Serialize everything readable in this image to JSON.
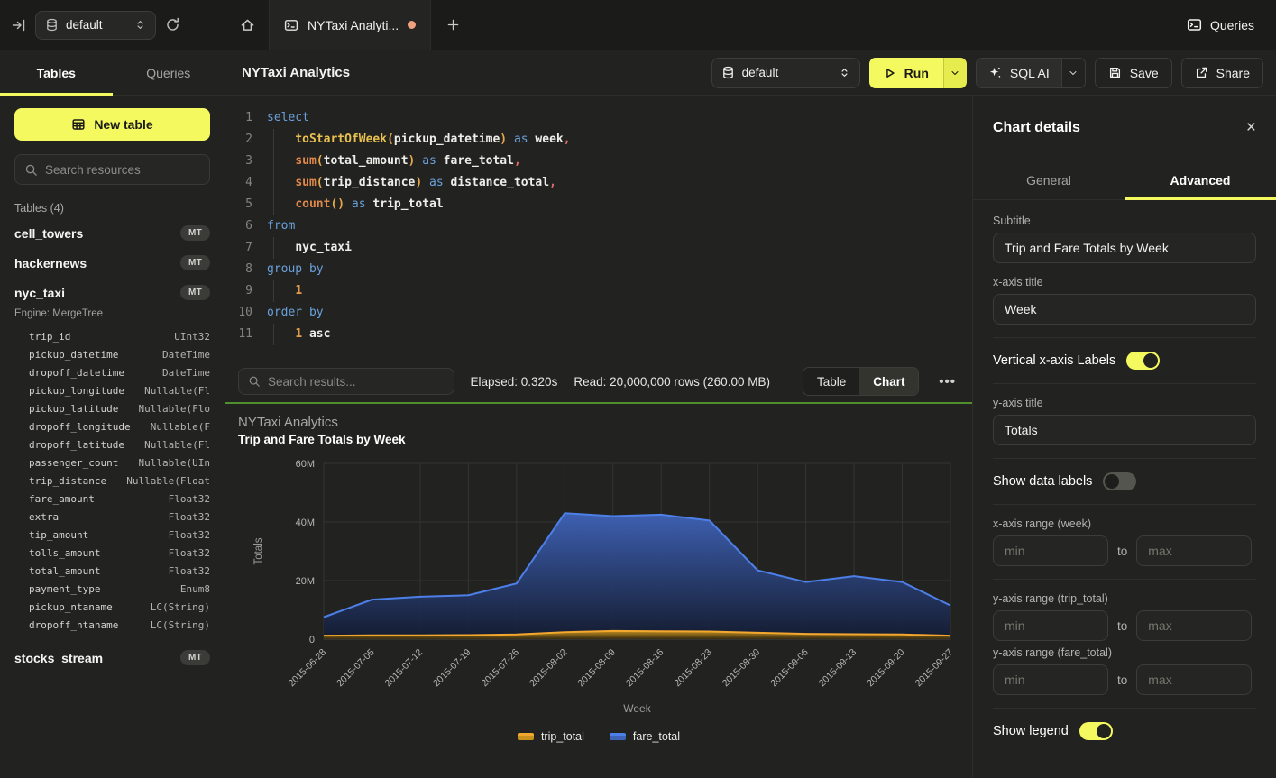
{
  "sidebar": {
    "database": "default",
    "tabs": [
      {
        "label": "Tables",
        "active": true
      },
      {
        "label": "Queries",
        "active": false
      }
    ],
    "new_table": "New table",
    "search_placeholder": "Search resources",
    "tables_header": "Tables (4)",
    "tables": [
      {
        "name": "cell_towers",
        "badge": "MT"
      },
      {
        "name": "hackernews",
        "badge": "MT"
      },
      {
        "name": "nyc_taxi",
        "badge": "MT",
        "engine": "Engine: MergeTree",
        "columns": [
          {
            "name": "trip_id",
            "type": "UInt32"
          },
          {
            "name": "pickup_datetime",
            "type": "DateTime"
          },
          {
            "name": "dropoff_datetime",
            "type": "DateTime"
          },
          {
            "name": "pickup_longitude",
            "type": "Nullable(Fl"
          },
          {
            "name": "pickup_latitude",
            "type": "Nullable(Flo"
          },
          {
            "name": "dropoff_longitude",
            "type": "Nullable(F"
          },
          {
            "name": "dropoff_latitude",
            "type": "Nullable(Fl"
          },
          {
            "name": "passenger_count",
            "type": "Nullable(UIn"
          },
          {
            "name": "trip_distance",
            "type": "Nullable(Float"
          },
          {
            "name": "fare_amount",
            "type": "Float32"
          },
          {
            "name": "extra",
            "type": "Float32"
          },
          {
            "name": "tip_amount",
            "type": "Float32"
          },
          {
            "name": "tolls_amount",
            "type": "Float32"
          },
          {
            "name": "total_amount",
            "type": "Float32"
          },
          {
            "name": "payment_type",
            "type": "Enum8"
          },
          {
            "name": "pickup_ntaname",
            "type": "LC(String)"
          },
          {
            "name": "dropoff_ntaname",
            "type": "LC(String)"
          }
        ]
      },
      {
        "name": "stocks_stream",
        "badge": "MT"
      }
    ]
  },
  "tabstrip": {
    "tab_title": "NYTaxi Analyti...",
    "queries": "Queries"
  },
  "toolbar": {
    "title": "NYTaxi Analytics",
    "database": "default",
    "run": "Run",
    "sql_ai": "SQL AI",
    "save": "Save",
    "share": "Share"
  },
  "editor": {
    "lines": [
      {
        "n": "1",
        "ind": false,
        "toks": [
          {
            "c": "kw",
            "t": "select"
          }
        ]
      },
      {
        "n": "2",
        "ind": true,
        "toks": [
          {
            "c": "fn",
            "t": "toStartOfWeek"
          },
          {
            "c": "pr",
            "t": "("
          },
          {
            "c": "id",
            "t": "pickup_datetime"
          },
          {
            "c": "pr",
            "t": ")"
          },
          {
            "c": "kw",
            "t": " as"
          },
          {
            "c": "id",
            "t": " week"
          },
          {
            "c": "cm",
            "t": ","
          }
        ]
      },
      {
        "n": "3",
        "ind": true,
        "toks": [
          {
            "c": "agg",
            "t": "sum"
          },
          {
            "c": "pr",
            "t": "("
          },
          {
            "c": "id",
            "t": "total_amount"
          },
          {
            "c": "pr",
            "t": ")"
          },
          {
            "c": "kw",
            "t": " as"
          },
          {
            "c": "id",
            "t": " fare_total"
          },
          {
            "c": "cm",
            "t": ","
          }
        ]
      },
      {
        "n": "4",
        "ind": true,
        "toks": [
          {
            "c": "agg",
            "t": "sum"
          },
          {
            "c": "pr",
            "t": "("
          },
          {
            "c": "id",
            "t": "trip_distance"
          },
          {
            "c": "pr",
            "t": ")"
          },
          {
            "c": "kw",
            "t": " as"
          },
          {
            "c": "id",
            "t": " distance_total"
          },
          {
            "c": "cm",
            "t": ","
          }
        ]
      },
      {
        "n": "5",
        "ind": true,
        "toks": [
          {
            "c": "agg",
            "t": "count"
          },
          {
            "c": "pr",
            "t": "()"
          },
          {
            "c": "kw",
            "t": " as"
          },
          {
            "c": "id",
            "t": " trip_total"
          }
        ]
      },
      {
        "n": "6",
        "ind": false,
        "toks": [
          {
            "c": "kw",
            "t": "from"
          }
        ]
      },
      {
        "n": "7",
        "ind": true,
        "toks": [
          {
            "c": "id",
            "t": "nyc_taxi"
          }
        ]
      },
      {
        "n": "8",
        "ind": false,
        "toks": [
          {
            "c": "kw",
            "t": "group by"
          }
        ]
      },
      {
        "n": "9",
        "ind": true,
        "toks": [
          {
            "c": "nm",
            "t": "1"
          }
        ]
      },
      {
        "n": "10",
        "ind": false,
        "toks": [
          {
            "c": "kw",
            "t": "order by"
          }
        ]
      },
      {
        "n": "11",
        "ind": true,
        "toks": [
          {
            "c": "nm",
            "t": "1"
          },
          {
            "c": "id",
            "t": " asc"
          }
        ]
      }
    ]
  },
  "results": {
    "search_placeholder": "Search results...",
    "elapsed": "Elapsed: 0.320s",
    "read": "Read: 20,000,000 rows (260.00 MB)",
    "views": [
      {
        "label": "Table",
        "active": false
      },
      {
        "label": "Chart",
        "active": true
      }
    ]
  },
  "chart_data": {
    "type": "area",
    "title": "NYTaxi Analytics",
    "subtitle": "Trip and Fare Totals by Week",
    "xlabel": "Week",
    "ylabel": "Totals",
    "ylim": [
      0,
      60000000
    ],
    "yticks": [
      {
        "value": 0,
        "label": "0"
      },
      {
        "value": 20000000,
        "label": "20M"
      },
      {
        "value": 40000000,
        "label": "40M"
      },
      {
        "value": 60000000,
        "label": "60M"
      }
    ],
    "grid": true,
    "legend_position": "bottom",
    "vertical_x_labels": true,
    "categories": [
      "2015-06-28",
      "2015-07-05",
      "2015-07-12",
      "2015-07-19",
      "2015-07-26",
      "2015-08-02",
      "2015-08-09",
      "2015-08-16",
      "2015-08-23",
      "2015-08-30",
      "2015-09-06",
      "2015-09-13",
      "2015-09-20",
      "2015-09-27"
    ],
    "series": [
      {
        "name": "trip_total",
        "line_color": "#f2a72e",
        "fill_top": "#c8921f",
        "fill_bottom": "#3a2c0e",
        "values": [
          1200000,
          1300000,
          1300000,
          1400000,
          1600000,
          2400000,
          2800000,
          2700000,
          2600000,
          2200000,
          1800000,
          1700000,
          1600000,
          1200000
        ]
      },
      {
        "name": "fare_total",
        "line_color": "#4d7fe8",
        "fill_top": "#3f63b8",
        "fill_bottom": "#131b31",
        "values": [
          7500000,
          13500000,
          14500000,
          15000000,
          19000000,
          43000000,
          42000000,
          42500000,
          40500000,
          23500000,
          19500000,
          21500000,
          19500000,
          11500000
        ]
      }
    ]
  },
  "details_panel": {
    "title": "Chart details",
    "tabs": [
      {
        "label": "General",
        "active": false
      },
      {
        "label": "Advanced",
        "active": true
      }
    ],
    "subtitle": {
      "label": "Subtitle",
      "value": "Trip and Fare Totals by Week"
    },
    "x_axis_title": {
      "label": "x-axis title",
      "value": "Week"
    },
    "vertical_x_labels": {
      "label": "Vertical x-axis Labels",
      "on": true
    },
    "y_axis_title": {
      "label": "y-axis title",
      "value": "Totals"
    },
    "show_data_labels": {
      "label": "Show data labels",
      "on": false
    },
    "x_range": {
      "label": "x-axis range (week)",
      "min_placeholder": "min",
      "max_placeholder": "max",
      "joiner": "to"
    },
    "y_range_trip": {
      "label": "y-axis range (trip_total)",
      "min_placeholder": "min",
      "max_placeholder": "max",
      "joiner": "to"
    },
    "y_range_fare": {
      "label": "y-axis range (fare_total)",
      "min_placeholder": "min",
      "max_placeholder": "max",
      "joiner": "to"
    },
    "show_legend": {
      "label": "Show legend",
      "on": true
    }
  }
}
